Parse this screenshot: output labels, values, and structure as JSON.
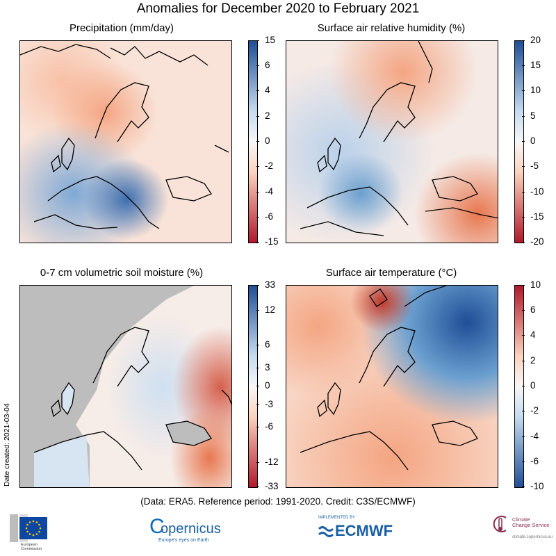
{
  "title": "Anomalies for December 2020 to February 2021",
  "panels": [
    {
      "title": "Precipitation (mm/day)",
      "ticks": [
        "15",
        "6",
        "4",
        "2",
        "0",
        "-2",
        "-4",
        "-6",
        "-15"
      ],
      "colors": [
        "#b2182b",
        "#e8774f",
        "#fbd3bf",
        "#f7f7f7",
        "#c6dbef",
        "#6b9fcf",
        "#1f4e96"
      ]
    },
    {
      "title": "Surface air relative humidity (%)",
      "ticks": [
        "20",
        "15",
        "10",
        "5",
        "0",
        "-5",
        "-10",
        "-15",
        "-20"
      ],
      "colors": [
        "#b2182b",
        "#e8774f",
        "#fbd3bf",
        "#f7f7f7",
        "#c6dbef",
        "#6b9fcf",
        "#1f4e96"
      ]
    },
    {
      "title": "0-7 cm volumetric soil moisture (%)",
      "ticks": [
        "33",
        "12",
        "6",
        "3",
        "0",
        "-3",
        "-6",
        "-12",
        "-33"
      ],
      "colors": [
        "#b2182b",
        "#e8774f",
        "#fbd3bf",
        "#f7f7f7",
        "#c6dbef",
        "#6b9fcf",
        "#1f4e96"
      ]
    },
    {
      "title": "Surface air temperature (°C)",
      "ticks": [
        "10",
        "6",
        "4",
        "2",
        "0",
        "-2",
        "-4",
        "-6",
        "-10"
      ],
      "colors": [
        "#1f4e96",
        "#6b9fcf",
        "#c6dbef",
        "#f7f7f7",
        "#fbd3bf",
        "#e8774f",
        "#b2182b"
      ]
    }
  ],
  "credit": "(Data: ERA5.  Reference period: 1991-2020.  Credit: C3S/ECMWF)",
  "date_created": "Date created: 2021-03-04",
  "logos": {
    "ec": {
      "line1": "European",
      "line2": "Commission"
    },
    "copernicus": {
      "name": "opernicus",
      "initial": "C",
      "tagline": "Europe's eyes on Earth"
    },
    "ecmwf": {
      "implemented": "IMPLEMENTED BY",
      "name": "ECMWF"
    },
    "c3s": {
      "line1": "Climate",
      "line2": "Change Service",
      "url": "climate.copernicus.eu"
    }
  }
}
